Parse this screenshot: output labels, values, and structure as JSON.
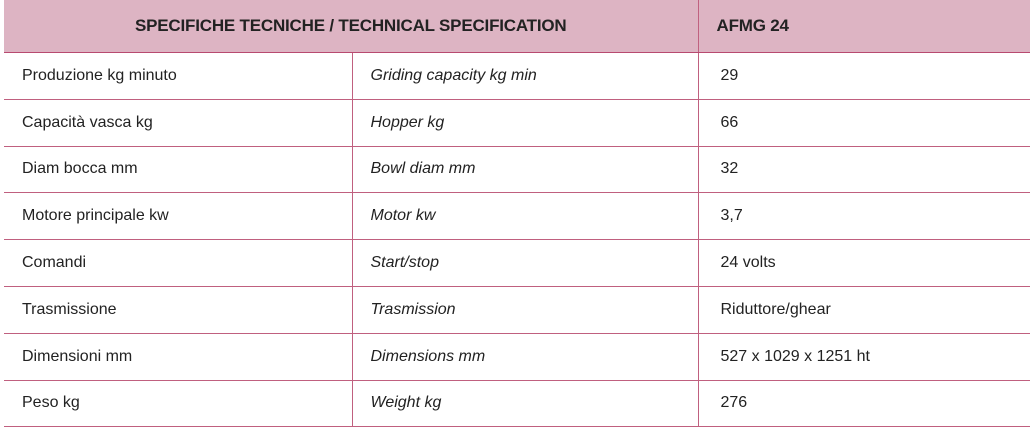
{
  "table": {
    "header": {
      "title": "SPECIFICHE TECNICHE / TECHNICAL SPECIFICATION",
      "model": "AFMG 24"
    },
    "rows": [
      {
        "it": "Produzione kg minuto",
        "en": "Griding capacity kg min",
        "value": "29"
      },
      {
        "it": "Capacità vasca kg",
        "en": "Hopper kg",
        "value": "66"
      },
      {
        "it": "Diam bocca mm",
        "en": "Bowl diam mm",
        "value": "32"
      },
      {
        "it": "Motore principale kw",
        "en": "Motor kw",
        "value": "3,7"
      },
      {
        "it": "Comandi",
        "en": "Start/stop",
        "value": "24 volts"
      },
      {
        "it": "Trasmissione",
        "en": "Trasmission",
        "value": "Riduttore/ghear"
      },
      {
        "it": "Dimensioni mm",
        "en": "Dimensions mm",
        "value": "527 x 1029 x 1251 ht"
      },
      {
        "it": "Peso kg",
        "en": "Weight kg",
        "value": "276"
      }
    ]
  },
  "colors": {
    "header_background": "#ddb4c3",
    "border": "#c0607f",
    "text": "#222222"
  }
}
